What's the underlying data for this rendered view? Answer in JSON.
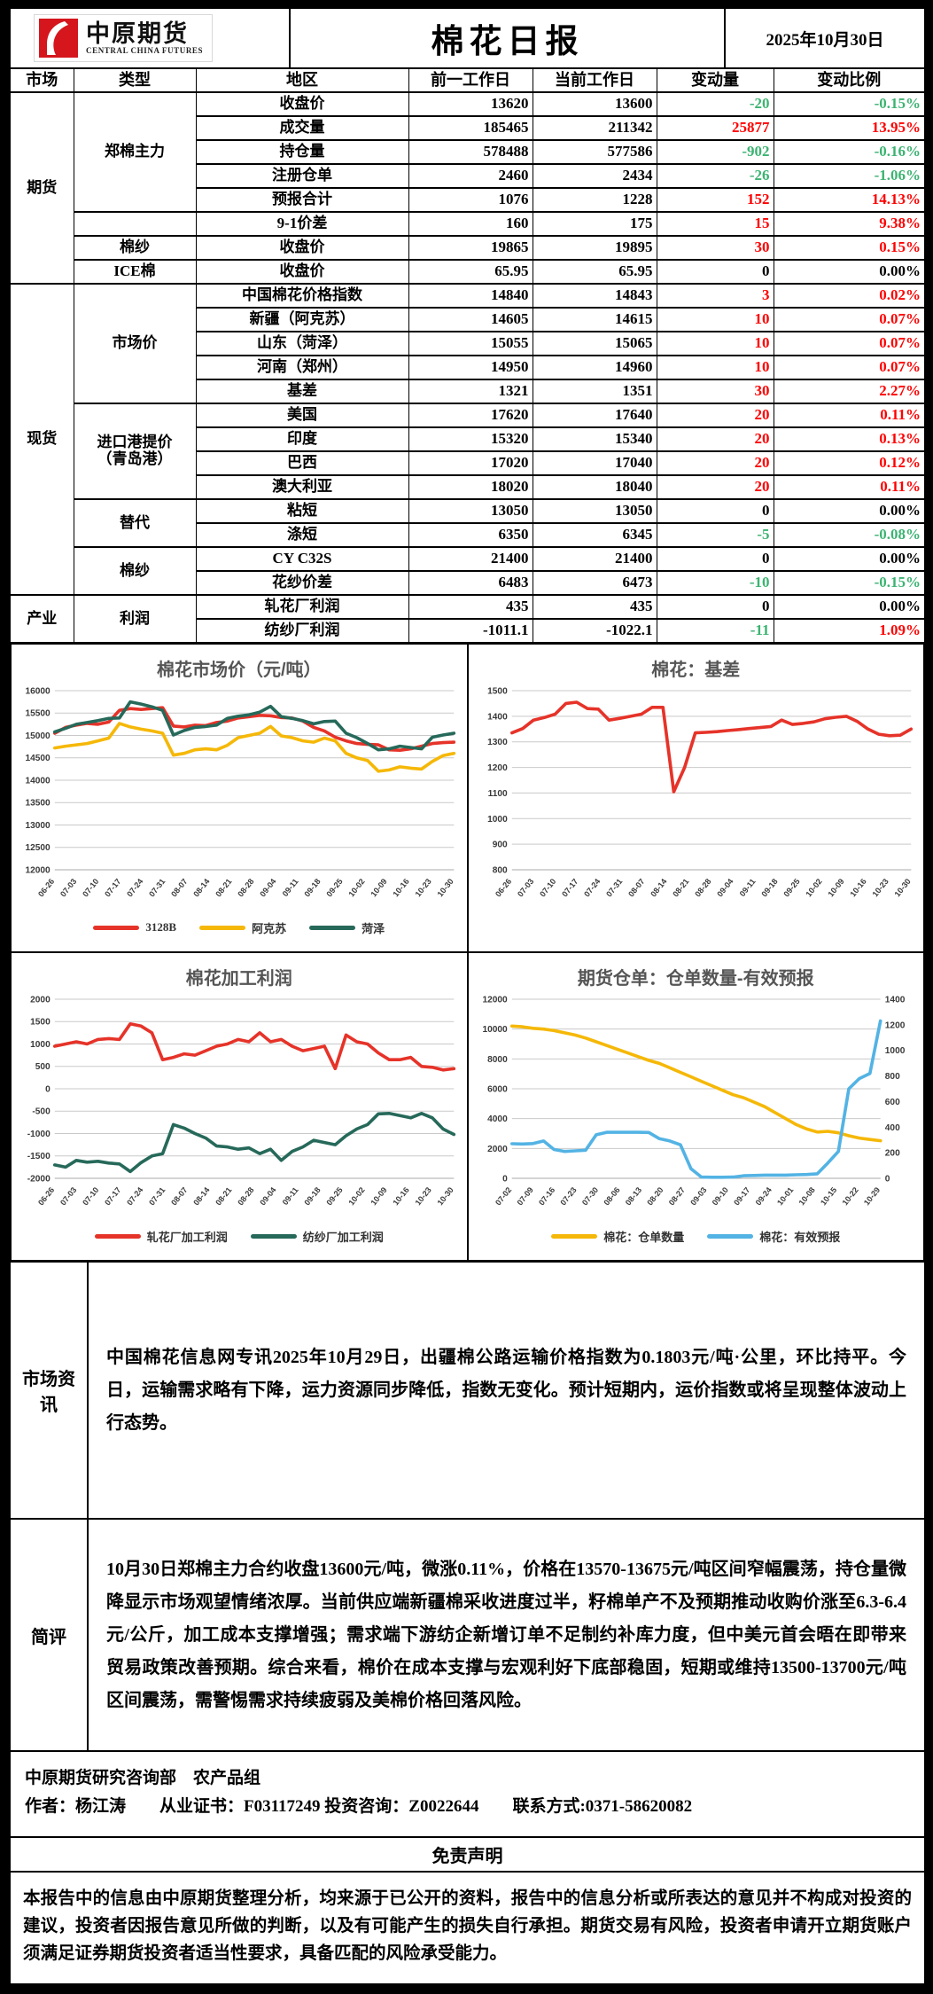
{
  "colors": {
    "positive": "#ff0000",
    "negative": "#3cb371",
    "neutral": "#000000",
    "chart_red": "#e63329",
    "chart_yellow": "#f5b808",
    "chart_green": "#26695a",
    "chart_blue": "#53b3e4",
    "logo_red": "#d5161c"
  },
  "header": {
    "logo_cn": "中原期货",
    "logo_en": "CENTRAL CHINA FUTURES",
    "title": "棉花日报",
    "date": "2025年10月30日"
  },
  "table": {
    "columns": [
      "市场",
      "类型",
      "地区",
      "前一工作日",
      "当前工作日",
      "变动量",
      "变动比例"
    ],
    "rows": [
      {
        "market": [
          "期货",
          8
        ],
        "type": [
          "郑棉主力",
          5
        ],
        "region": "收盘价",
        "prev": "13620",
        "curr": "13600",
        "chg": "-20",
        "pct": "-0.15%"
      },
      {
        "region": "成交量",
        "prev": "185465",
        "curr": "211342",
        "chg": "25877",
        "pct": "13.95%"
      },
      {
        "region": "持仓量",
        "prev": "578488",
        "curr": "577586",
        "chg": "-902",
        "pct": "-0.16%"
      },
      {
        "region": "注册仓单",
        "prev": "2460",
        "curr": "2434",
        "chg": "-26",
        "pct": "-1.06%"
      },
      {
        "region": "预报合计",
        "prev": "1076",
        "curr": "1228",
        "chg": "152",
        "pct": "14.13%"
      },
      {
        "type": [
          "",
          1
        ],
        "region": "9-1价差",
        "prev": "160",
        "curr": "175",
        "chg": "15",
        "pct": "9.38%"
      },
      {
        "type": [
          "棉纱",
          1
        ],
        "region": "收盘价",
        "prev": "19865",
        "curr": "19895",
        "chg": "30",
        "pct": "0.15%"
      },
      {
        "type": [
          "ICE棉",
          1
        ],
        "region": "收盘价",
        "prev": "65.95",
        "curr": "65.95",
        "chg": "0",
        "pct": "0.00%"
      },
      {
        "market": [
          "现货",
          13
        ],
        "type": [
          "市场价",
          5
        ],
        "region": "中国棉花价格指数",
        "prev": "14840",
        "curr": "14843",
        "chg": "3",
        "pct": "0.02%"
      },
      {
        "region": "新疆（阿克苏）",
        "prev": "14605",
        "curr": "14615",
        "chg": "10",
        "pct": "0.07%"
      },
      {
        "region": "山东（菏泽）",
        "prev": "15055",
        "curr": "15065",
        "chg": "10",
        "pct": "0.07%"
      },
      {
        "region": "河南（郑州）",
        "prev": "14950",
        "curr": "14960",
        "chg": "10",
        "pct": "0.07%"
      },
      {
        "region": "基差",
        "prev": "1321",
        "curr": "1351",
        "chg": "30",
        "pct": "2.27%"
      },
      {
        "type": [
          "进口港提价\n（青岛港）",
          4
        ],
        "region": "美国",
        "prev": "17620",
        "curr": "17640",
        "chg": "20",
        "pct": "0.11%"
      },
      {
        "region": "印度",
        "prev": "15320",
        "curr": "15340",
        "chg": "20",
        "pct": "0.13%"
      },
      {
        "region": "巴西",
        "prev": "17020",
        "curr": "17040",
        "chg": "20",
        "pct": "0.12%"
      },
      {
        "region": "澳大利亚",
        "prev": "18020",
        "curr": "18040",
        "chg": "20",
        "pct": "0.11%"
      },
      {
        "type": [
          "替代",
          2
        ],
        "region": "粘短",
        "prev": "13050",
        "curr": "13050",
        "chg": "0",
        "pct": "0.00%"
      },
      {
        "region": "涤短",
        "prev": "6350",
        "curr": "6345",
        "chg": "-5",
        "pct": "-0.08%"
      },
      {
        "type": [
          "棉纱",
          2
        ],
        "region": "CY C32S",
        "prev": "21400",
        "curr": "21400",
        "chg": "0",
        "pct": "0.00%"
      },
      {
        "region": "花纱价差",
        "prev": "6483",
        "curr": "6473",
        "chg": "-10",
        "pct": "-0.15%"
      },
      {
        "market": [
          "产业",
          2
        ],
        "type": [
          "利润",
          2
        ],
        "region": "轧花厂利润",
        "prev": "435",
        "curr": "435",
        "chg": "0",
        "pct": "0.00%"
      },
      {
        "region": "纺纱厂利润",
        "prev": "-1011.1",
        "curr": "-1022.1",
        "chg": "-11",
        "pct": "1.09%"
      }
    ]
  },
  "chart_data": [
    {
      "type": "line",
      "title": "棉花市场价（元/吨）",
      "ylim": [
        12000,
        16000
      ],
      "ytick_step": 500,
      "legend_position": "bottom",
      "grid": true,
      "x_labels": [
        "06-26",
        "07-03",
        "07-10",
        "07-17",
        "07-24",
        "07-31",
        "08-07",
        "08-14",
        "08-21",
        "08-28",
        "09-04",
        "09-11",
        "09-18",
        "09-25",
        "10-02",
        "10-09",
        "10-16",
        "10-23",
        "10-30"
      ],
      "series": [
        {
          "name": "3128B",
          "color": "#e63329",
          "values": [
            15050,
            15180,
            15230,
            15270,
            15250,
            15300,
            15560,
            15600,
            15580,
            15600,
            15620,
            15210,
            15190,
            15230,
            15220,
            15290,
            15320,
            15390,
            15420,
            15450,
            15440,
            15400,
            15390,
            15320,
            15180,
            15100,
            14960,
            14880,
            14820,
            14800,
            14790,
            14680,
            14670,
            14700,
            14760,
            14820,
            14840,
            14850
          ]
        },
        {
          "name": "阿克苏",
          "color": "#f5b808",
          "values": [
            14720,
            14760,
            14790,
            14820,
            14880,
            14940,
            15270,
            15190,
            15140,
            15100,
            15050,
            14560,
            14600,
            14680,
            14700,
            14680,
            14780,
            14950,
            15000,
            15050,
            15200,
            14990,
            14950,
            14880,
            14850,
            14940,
            14880,
            14600,
            14500,
            14440,
            14200,
            14230,
            14300,
            14270,
            14250,
            14420,
            14550,
            14600
          ]
        },
        {
          "name": "菏泽",
          "color": "#26695a",
          "values": [
            15080,
            15160,
            15250,
            15290,
            15330,
            15380,
            15390,
            15750,
            15700,
            15640,
            15560,
            15010,
            15110,
            15180,
            15200,
            15230,
            15380,
            15430,
            15460,
            15520,
            15650,
            15420,
            15380,
            15330,
            15260,
            15310,
            15320,
            15050,
            14950,
            14820,
            14680,
            14700,
            14760,
            14730,
            14700,
            14960,
            15010,
            15050
          ]
        }
      ]
    },
    {
      "type": "line",
      "title": "棉花：基差",
      "ylim": [
        800,
        1500
      ],
      "ytick_step": 100,
      "legend_position": "none",
      "grid": true,
      "x_labels": [
        "06-26",
        "07-03",
        "07-10",
        "07-17",
        "07-24",
        "07-31",
        "08-07",
        "08-14",
        "08-21",
        "08-28",
        "09-04",
        "09-11",
        "09-18",
        "09-25",
        "10-02",
        "10-09",
        "10-16",
        "10-23",
        "10-30"
      ],
      "series": [
        {
          "name": "棉花基差",
          "color": "#e63329",
          "values": [
            1335,
            1352,
            1385,
            1395,
            1408,
            1450,
            1455,
            1430,
            1428,
            1385,
            1392,
            1400,
            1408,
            1435,
            1435,
            1105,
            1200,
            1335,
            1337,
            1340,
            1344,
            1348,
            1352,
            1356,
            1360,
            1385,
            1368,
            1372,
            1378,
            1390,
            1396,
            1400,
            1380,
            1350,
            1330,
            1324,
            1326,
            1350
          ]
        }
      ]
    },
    {
      "type": "line",
      "title": "棉花加工利润",
      "ylim": [
        -2000,
        2000
      ],
      "ytick_step": 500,
      "legend_position": "bottom",
      "grid": true,
      "x_labels": [
        "06-26",
        "07-03",
        "07-10",
        "07-17",
        "07-24",
        "07-31",
        "08-07",
        "08-14",
        "08-21",
        "08-28",
        "09-04",
        "09-11",
        "09-18",
        "09-25",
        "10-02",
        "10-09",
        "10-16",
        "10-23",
        "10-30"
      ],
      "series": [
        {
          "name": "轧花厂加工利润",
          "color": "#e63329",
          "values": [
            950,
            1000,
            1050,
            1000,
            1100,
            1120,
            1100,
            1450,
            1400,
            1250,
            650,
            700,
            780,
            750,
            850,
            950,
            1000,
            1100,
            1050,
            1250,
            1050,
            1100,
            950,
            850,
            900,
            950,
            450,
            1200,
            1050,
            1000,
            800,
            650,
            650,
            700,
            500,
            480,
            420,
            450
          ]
        },
        {
          "name": "纺纱厂加工利润",
          "color": "#26695a",
          "values": [
            -1700,
            -1750,
            -1600,
            -1640,
            -1620,
            -1660,
            -1680,
            -1850,
            -1650,
            -1500,
            -1450,
            -800,
            -880,
            -1000,
            -1100,
            -1280,
            -1300,
            -1350,
            -1320,
            -1450,
            -1350,
            -1600,
            -1400,
            -1300,
            -1150,
            -1200,
            -1250,
            -1050,
            -900,
            -800,
            -560,
            -550,
            -600,
            -650,
            -550,
            -650,
            -900,
            -1020
          ]
        }
      ]
    },
    {
      "type": "line",
      "title": "期货仓单：仓单数量-有效预报",
      "ylim": [
        0,
        12000
      ],
      "ytick_step": 2000,
      "y2lim": [
        0,
        1400
      ],
      "y2tick_step": 200,
      "legend_position": "bottom",
      "grid": true,
      "x_labels": [
        "07-02",
        "07-09",
        "07-16",
        "07-23",
        "07-30",
        "08-06",
        "08-13",
        "08-20",
        "08-27",
        "09-03",
        "09-10",
        "09-17",
        "09-24",
        "10-01",
        "10-08",
        "10-15",
        "10-22",
        "10-29"
      ],
      "series": [
        {
          "name": "棉花：仓单数量",
          "color": "#f5b808",
          "values": [
            10200,
            10150,
            10050,
            10000,
            9900,
            9750,
            9600,
            9400,
            9150,
            8900,
            8650,
            8400,
            8150,
            7900,
            7700,
            7400,
            7100,
            6800,
            6500,
            6200,
            5900,
            5600,
            5400,
            5100,
            4800,
            4400,
            4000,
            3600,
            3300,
            3100,
            3150,
            3050,
            2850,
            2700,
            2600,
            2520
          ]
        },
        {
          "name": "棉花：有效预报",
          "color": "#53b3e4",
          "axis": "right",
          "values": [
            270,
            268,
            272,
            292,
            225,
            210,
            215,
            220,
            340,
            360,
            360,
            360,
            360,
            358,
            310,
            292,
            262,
            75,
            10,
            8,
            8,
            10,
            20,
            22,
            25,
            25,
            25,
            28,
            30,
            35,
            120,
            210,
            700,
            780,
            820,
            1230
          ]
        }
      ]
    }
  ],
  "market_info": {
    "label": "市场资讯",
    "text": "中国棉花信息网专讯2025年10月29日，出疆棉公路运输价格指数为0.1803元/吨·公里，环比持平。今日，运输需求略有下降，运力资源同步降低，指数无变化。预计短期内，运价指数或将呈现整体波动上行态势。"
  },
  "comment": {
    "label": "简评",
    "text": "10月30日郑棉主力合约收盘13600元/吨，微涨0.11%，价格在13570-13675元/吨区间窄幅震荡，持仓量微降显示市场观望情绪浓厚。当前供应端新疆棉采收进度过半，籽棉单产不及预期推动收购价涨至6.3-6.4元/公斤，加工成本支撑增强；需求端下游纺企新增订单不足制约补库力度，但中美元首会晤在即带来贸易政策改善预期。综合来看，棉价在成本支撑与宏观利好下底部稳固，短期或维持13500-13700元/吨区间震荡，需警惕需求持续疲弱及美棉价格回落风险。"
  },
  "footer": {
    "line1": "中原期货研究咨询部　农产品组",
    "line2": "作者：杨江涛　　从业证书：F03117249 投资咨询：Z0022644　　联系方式:0371-58620082"
  },
  "disclaimer": {
    "title": "免责声明",
    "text": "本报告中的信息由中原期货整理分析，均来源于已公开的资料，报告中的信息分析或所表达的意见并不构成对投资的建议，投资者因报告意见所做的判断，以及有可能产生的损失自行承担。期货交易有风险，投资者申请开立期货账户须满足证券期货投资者适当性要求，具备匹配的风险承受能力。"
  }
}
